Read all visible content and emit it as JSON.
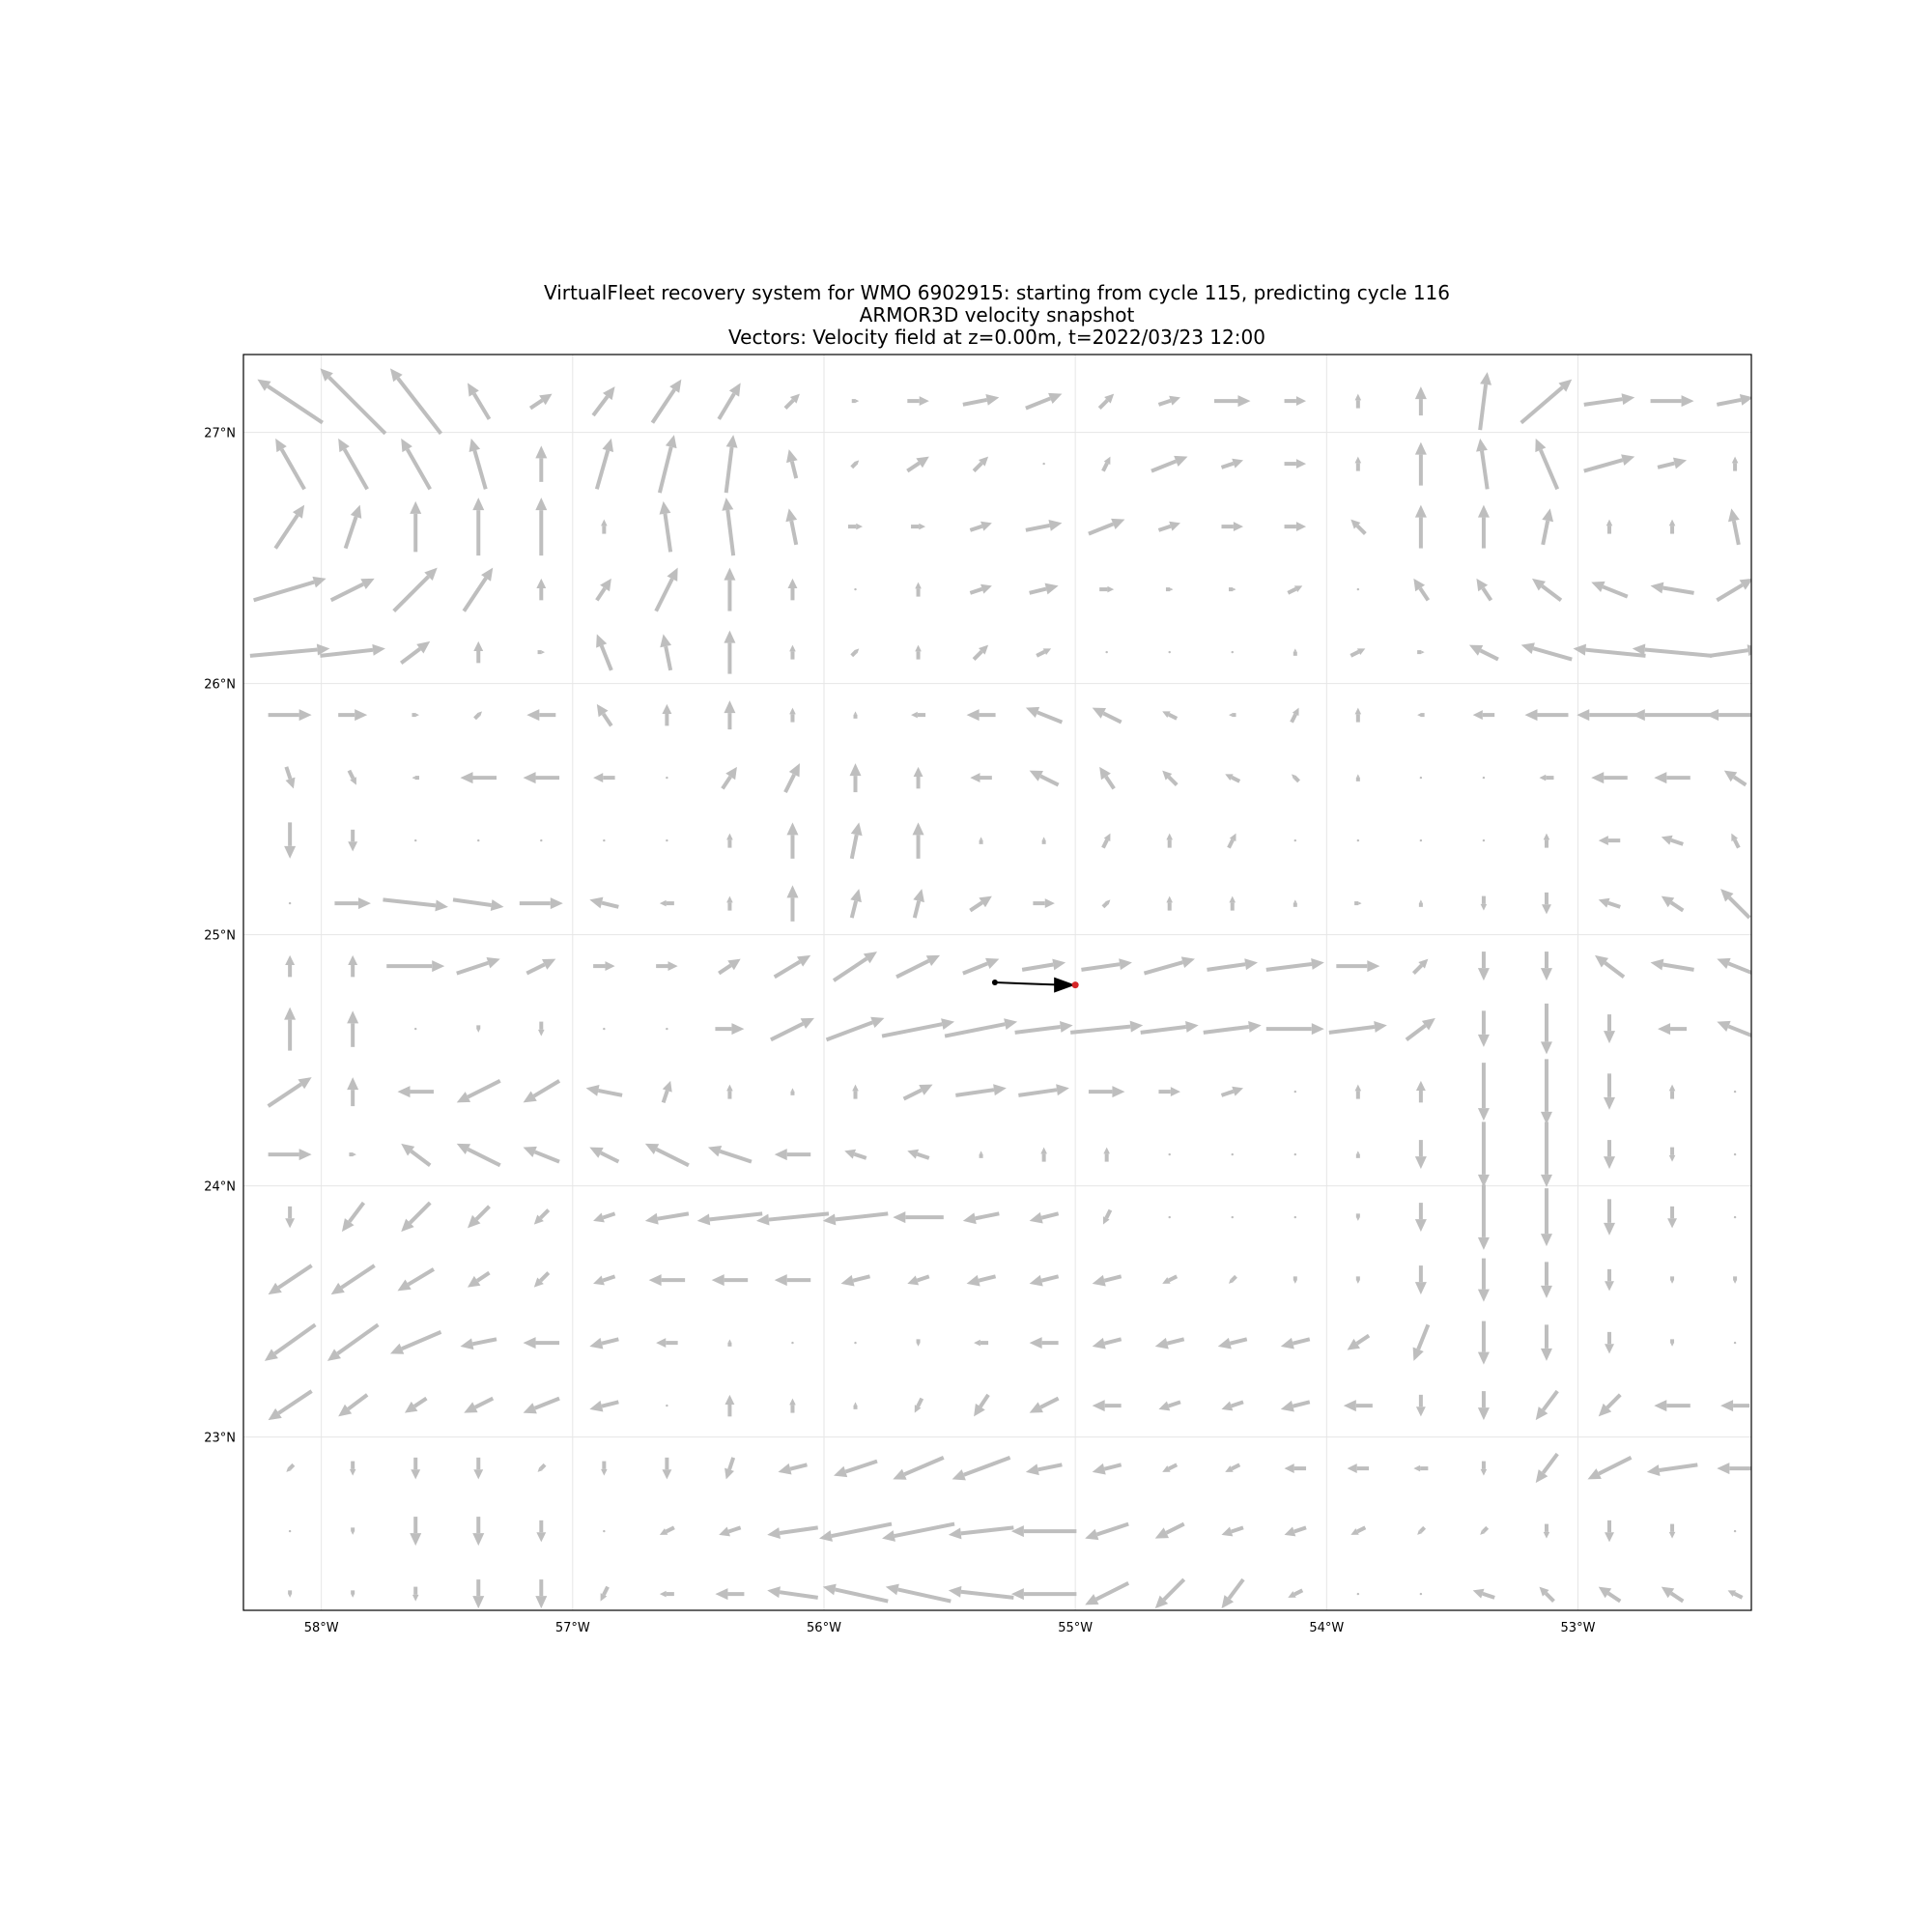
{
  "title_lines": [
    "VirtualFleet recovery system for WMO 6902915: starting from cycle 115, predicting cycle 116",
    "ARMOR3D velocity snapshot",
    "Vectors: Velocity field at z=0.00m, t=2022/03/23 12:00"
  ],
  "colors": {
    "vector": "#bebebe",
    "trajectory": "#000000",
    "start_marker": "#000000",
    "predicted_marker": "#d62728",
    "grid": "#e6e6e6",
    "frame": "#000000"
  },
  "chart_data": {
    "type": "quiver",
    "xlim": [
      -58.31,
      -52.31
    ],
    "ylim": [
      22.31,
      27.31
    ],
    "x_ticks": [
      {
        "value": -58,
        "label": "58°W"
      },
      {
        "value": -57,
        "label": "57°W"
      },
      {
        "value": -56,
        "label": "56°W"
      },
      {
        "value": -55,
        "label": "55°W"
      },
      {
        "value": -54,
        "label": "54°W"
      },
      {
        "value": -53,
        "label": "53°W"
      }
    ],
    "y_ticks": [
      {
        "value": 27,
        "label": "27°N"
      },
      {
        "value": 26,
        "label": "26°N"
      },
      {
        "value": 25,
        "label": "25°N"
      },
      {
        "value": 24,
        "label": "24°N"
      },
      {
        "value": 23,
        "label": "23°N"
      }
    ],
    "grid": true,
    "vector_grid": {
      "lon": [
        -58.125,
        -57.875,
        -57.625,
        -57.375,
        -57.125,
        -56.875,
        -56.625,
        -56.375,
        -56.125,
        -55.875,
        -55.625,
        -55.375,
        -55.125,
        -54.875,
        -54.625,
        -54.375,
        -54.125,
        -53.875,
        -53.625,
        -53.375,
        -53.125,
        -52.875,
        -52.625,
        -52.375
      ],
      "lat": [
        27.125,
        26.875,
        26.625,
        26.375,
        26.125,
        25.875,
        25.625,
        25.375,
        25.125,
        24.875,
        24.625,
        24.375,
        24.125,
        23.875,
        23.625,
        23.375,
        23.125,
        22.875,
        22.625,
        22.375
      ],
      "u": [
        [
          -0.45,
          -0.45,
          -0.35,
          -0.15,
          0.15,
          0.15,
          0.2,
          0.15,
          0.1,
          0.05,
          0.15,
          0.25,
          0.25,
          0.1,
          0.15,
          0.25,
          0.15,
          0.0,
          0.0,
          0.05,
          0.35,
          0.35,
          0.3,
          0.25
        ],
        [
          -0.2,
          -0.2,
          -0.2,
          -0.1,
          0.0,
          0.1,
          0.1,
          0.05,
          -0.05,
          0.05,
          0.15,
          0.1,
          0.0,
          0.05,
          0.25,
          0.15,
          0.15,
          0.0,
          0.0,
          -0.05,
          -0.15,
          0.35,
          0.2,
          0.0
        ],
        [
          0.2,
          0.1,
          0.0,
          0.0,
          0.0,
          0.0,
          -0.05,
          -0.05,
          -0.05,
          0.1,
          0.1,
          0.15,
          0.25,
          0.25,
          0.15,
          0.15,
          0.15,
          -0.1,
          0.0,
          0.0,
          0.05,
          0.0,
          0.0,
          -0.05
        ],
        [
          0.5,
          0.3,
          0.3,
          0.2,
          0.0,
          0.1,
          0.15,
          0.0,
          0.0,
          0.0,
          0.0,
          0.15,
          0.2,
          0.1,
          0.05,
          0.05,
          0.1,
          0.0,
          -0.1,
          -0.1,
          -0.2,
          -0.25,
          -0.3,
          0.25
        ],
        [
          0.55,
          0.45,
          0.2,
          0.0,
          0.05,
          -0.1,
          -0.05,
          0.0,
          0.0,
          0.05,
          0.0,
          0.1,
          0.1,
          0.0,
          0.0,
          0.0,
          0.0,
          0.1,
          0.05,
          -0.2,
          -0.35,
          -0.5,
          -0.55,
          0.35
        ],
        [
          0.3,
          0.2,
          0.05,
          0.05,
          -0.2,
          -0.1,
          0.0,
          0.0,
          0.0,
          0.0,
          -0.1,
          -0.2,
          -0.25,
          -0.2,
          -0.1,
          -0.05,
          0.05,
          0.0,
          -0.05,
          -0.15,
          -0.3,
          -0.45,
          -0.55,
          -0.4
        ],
        [
          0.05,
          0.05,
          -0.05,
          -0.25,
          -0.25,
          -0.15,
          0.0,
          0.1,
          0.1,
          0.0,
          0.0,
          -0.15,
          -0.2,
          -0.1,
          -0.1,
          -0.1,
          -0.05,
          0.0,
          0.0,
          0.0,
          -0.1,
          -0.25,
          -0.25,
          -0.15
        ],
        [
          0.0,
          0.0,
          0.0,
          0.0,
          0.0,
          0.0,
          0.0,
          0.0,
          0.0,
          0.05,
          0.0,
          0.0,
          0.0,
          0.05,
          0.0,
          0.05,
          0.0,
          0.0,
          0.0,
          0.0,
          0.0,
          -0.15,
          -0.15,
          -0.05
        ],
        [
          0.0,
          0.25,
          0.45,
          0.35,
          0.3,
          -0.2,
          -0.1,
          0.0,
          0.0,
          0.05,
          0.05,
          0.15,
          0.15,
          0.05,
          0.0,
          0.0,
          0.0,
          0.05,
          0.0,
          0.0,
          0.0,
          -0.15,
          -0.15,
          -0.2
        ],
        [
          0.0,
          0.0,
          0.4,
          0.3,
          0.2,
          0.15,
          0.15,
          0.15,
          0.25,
          0.3,
          0.3,
          0.25,
          0.3,
          0.35,
          0.35,
          0.35,
          0.4,
          0.3,
          0.1,
          0.0,
          0.0,
          -0.2,
          -0.3,
          -0.25
        ],
        [
          0.0,
          0.0,
          0.0,
          0.0,
          0.0,
          0.0,
          0.0,
          0.2,
          0.3,
          0.4,
          0.5,
          0.5,
          0.4,
          0.5,
          0.4,
          0.4,
          0.4,
          0.4,
          0.2,
          0.0,
          0.0,
          0.0,
          -0.2,
          -0.25
        ],
        [
          0.3,
          0.0,
          -0.25,
          -0.3,
          -0.25,
          -0.25,
          0.05,
          0.0,
          0.0,
          0.0,
          0.2,
          0.35,
          0.35,
          0.25,
          0.15,
          0.15,
          0.0,
          0.0,
          0.0,
          0.0,
          0.0,
          0.0,
          0.0,
          0.0
        ],
        [
          0.3,
          0.05,
          -0.2,
          -0.3,
          -0.25,
          -0.2,
          -0.3,
          -0.3,
          -0.25,
          -0.15,
          -0.15,
          0.0,
          0.0,
          0.0,
          0.0,
          0.0,
          0.0,
          0.0,
          0.0,
          0.0,
          0.0,
          0.0,
          0.0,
          0.0
        ],
        [
          0.0,
          -0.15,
          -0.2,
          -0.15,
          -0.1,
          -0.15,
          -0.3,
          -0.45,
          -0.5,
          -0.45,
          -0.35,
          -0.25,
          -0.2,
          -0.05,
          0.0,
          0.0,
          0.0,
          0.0,
          0.0,
          0.0,
          0.0,
          0.0,
          0.0,
          0.0
        ],
        [
          -0.3,
          -0.3,
          -0.25,
          -0.15,
          -0.1,
          -0.15,
          -0.25,
          -0.25,
          -0.25,
          -0.2,
          -0.15,
          -0.2,
          -0.2,
          -0.2,
          -0.1,
          -0.05,
          0.0,
          0.0,
          0.0,
          0.0,
          0.0,
          0.0,
          0.0,
          0.0
        ],
        [
          -0.35,
          -0.35,
          -0.35,
          -0.25,
          -0.25,
          -0.2,
          -0.15,
          0.0,
          0.0,
          0.0,
          0.0,
          -0.1,
          -0.2,
          -0.2,
          -0.2,
          -0.2,
          -0.2,
          -0.15,
          -0.1,
          0.0,
          0.0,
          0.0,
          0.0,
          0.0
        ],
        [
          -0.3,
          -0.2,
          -0.15,
          -0.2,
          -0.25,
          -0.2,
          0.0,
          0.0,
          0.0,
          0.0,
          -0.05,
          -0.1,
          -0.2,
          -0.2,
          -0.15,
          -0.15,
          -0.2,
          -0.2,
          0.0,
          0.0,
          -0.15,
          -0.15,
          -0.25,
          -0.2
        ],
        [
          -0.05,
          0.0,
          0.0,
          0.0,
          -0.05,
          0.0,
          0.0,
          -0.05,
          -0.2,
          -0.3,
          -0.35,
          -0.4,
          -0.25,
          -0.2,
          -0.1,
          -0.1,
          -0.15,
          -0.15,
          -0.1,
          0.0,
          -0.15,
          -0.3,
          -0.35,
          -0.25
        ],
        [
          0.0,
          0.0,
          0.0,
          0.0,
          0.0,
          0.0,
          -0.1,
          -0.15,
          -0.35,
          -0.5,
          -0.5,
          -0.45,
          -0.45,
          -0.3,
          -0.2,
          -0.15,
          -0.15,
          -0.1,
          -0.05,
          -0.05,
          0.0,
          0.0,
          0.0,
          0.0
        ],
        [
          0.0,
          0.0,
          0.0,
          0.0,
          0.0,
          -0.05,
          -0.1,
          -0.2,
          -0.35,
          -0.45,
          -0.45,
          -0.45,
          -0.45,
          -0.3,
          -0.2,
          -0.15,
          -0.1,
          0.0,
          0.0,
          -0.15,
          -0.1,
          -0.15,
          -0.15,
          -0.1
        ]
      ],
      "v": [
        [
          0.3,
          0.45,
          0.45,
          0.25,
          0.1,
          0.2,
          0.3,
          0.25,
          0.1,
          0.0,
          0.0,
          0.05,
          0.1,
          0.1,
          0.05,
          0.0,
          0.0,
          0.1,
          0.2,
          0.4,
          0.3,
          0.05,
          0.0,
          0.05
        ],
        [
          0.35,
          0.35,
          0.35,
          0.35,
          0.25,
          0.35,
          0.4,
          0.4,
          0.2,
          0.05,
          0.1,
          0.1,
          0.0,
          0.1,
          0.1,
          0.05,
          0.0,
          0.1,
          0.3,
          0.35,
          0.35,
          0.1,
          0.05,
          0.1
        ],
        [
          0.3,
          0.3,
          0.35,
          0.4,
          0.4,
          0.1,
          0.35,
          0.4,
          0.25,
          0.0,
          0.0,
          0.05,
          0.05,
          0.1,
          0.05,
          0.0,
          0.0,
          0.1,
          0.3,
          0.3,
          0.25,
          0.1,
          0.1,
          0.25
        ],
        [
          0.15,
          0.15,
          0.3,
          0.3,
          0.15,
          0.15,
          0.3,
          0.3,
          0.15,
          0.0,
          0.1,
          0.05,
          0.05,
          0.0,
          0.0,
          0.0,
          0.05,
          0.0,
          0.15,
          0.15,
          0.15,
          0.1,
          0.05,
          0.15
        ],
        [
          0.05,
          0.05,
          0.15,
          0.15,
          0.0,
          0.25,
          0.25,
          0.3,
          0.1,
          0.05,
          0.1,
          0.1,
          0.05,
          0.0,
          0.0,
          0.0,
          0.05,
          0.05,
          0.0,
          0.1,
          0.1,
          0.05,
          0.05,
          0.05
        ],
        [
          0.0,
          0.0,
          0.0,
          0.05,
          0.0,
          0.15,
          0.15,
          0.2,
          0.1,
          0.05,
          0.0,
          0.0,
          0.1,
          0.1,
          0.05,
          0.0,
          0.1,
          0.1,
          0.0,
          0.0,
          0.0,
          0.0,
          0.0,
          0.0
        ],
        [
          -0.15,
          -0.1,
          0.0,
          0.0,
          0.0,
          0.0,
          0.0,
          0.15,
          0.2,
          0.2,
          0.15,
          0.0,
          0.1,
          0.15,
          0.1,
          0.05,
          0.05,
          0.05,
          0.0,
          0.0,
          0.0,
          0.0,
          0.0,
          0.1
        ],
        [
          -0.25,
          -0.15,
          0.0,
          0.0,
          0.0,
          0.0,
          0.0,
          0.1,
          0.25,
          0.25,
          0.25,
          0.05,
          0.05,
          0.1,
          0.1,
          0.1,
          0.0,
          0.0,
          0.0,
          0.0,
          0.1,
          0.0,
          0.05,
          0.1
        ],
        [
          0.0,
          0.0,
          -0.05,
          -0.05,
          0.0,
          0.05,
          0.0,
          0.1,
          0.25,
          0.2,
          0.2,
          0.1,
          0.0,
          0.05,
          0.1,
          0.1,
          0.05,
          0.0,
          0.05,
          -0.1,
          -0.15,
          0.05,
          0.1,
          0.2
        ],
        [
          0.15,
          0.15,
          0.0,
          0.1,
          0.1,
          0.0,
          0.0,
          0.1,
          0.15,
          0.2,
          0.15,
          0.1,
          0.05,
          0.05,
          0.1,
          0.05,
          0.05,
          0.0,
          0.1,
          -0.2,
          -0.2,
          0.15,
          0.05,
          0.1
        ],
        [
          0.3,
          0.25,
          0.0,
          -0.05,
          -0.1,
          0.0,
          0.0,
          0.0,
          0.15,
          0.15,
          0.1,
          0.1,
          0.05,
          0.05,
          0.05,
          0.05,
          0.0,
          0.05,
          0.15,
          -0.25,
          -0.35,
          -0.2,
          0.0,
          0.1
        ],
        [
          0.2,
          0.2,
          0.0,
          -0.15,
          -0.15,
          0.05,
          0.15,
          0.1,
          0.05,
          0.1,
          0.1,
          0.05,
          0.05,
          0.0,
          0.0,
          0.05,
          0.0,
          0.1,
          0.15,
          -0.4,
          -0.45,
          -0.25,
          0.1,
          0.0
        ],
        [
          0.0,
          0.0,
          0.15,
          0.15,
          0.1,
          0.1,
          0.15,
          0.1,
          0.0,
          0.05,
          0.05,
          0.05,
          0.1,
          0.1,
          0.0,
          0.0,
          0.0,
          0.05,
          -0.2,
          -0.45,
          -0.45,
          -0.2,
          -0.1,
          0.0
        ],
        [
          -0.15,
          -0.2,
          -0.2,
          -0.15,
          -0.1,
          -0.05,
          -0.05,
          -0.05,
          -0.05,
          -0.05,
          0.0,
          -0.05,
          -0.05,
          -0.1,
          0.0,
          0.0,
          0.0,
          -0.05,
          -0.2,
          -0.45,
          -0.4,
          -0.25,
          -0.15,
          0.0
        ],
        [
          -0.2,
          -0.2,
          -0.15,
          -0.1,
          -0.1,
          -0.05,
          0.0,
          0.0,
          0.0,
          -0.05,
          -0.05,
          -0.05,
          -0.05,
          -0.05,
          -0.05,
          -0.05,
          -0.05,
          -0.05,
          -0.2,
          -0.3,
          -0.25,
          -0.15,
          -0.05,
          -0.05
        ],
        [
          -0.25,
          -0.25,
          -0.15,
          -0.05,
          0.0,
          -0.05,
          0.0,
          0.05,
          0.0,
          0.0,
          -0.05,
          0.0,
          0.0,
          -0.05,
          -0.05,
          -0.05,
          -0.05,
          -0.1,
          -0.25,
          -0.3,
          -0.25,
          -0.15,
          -0.05,
          0.0
        ],
        [
          -0.2,
          -0.15,
          -0.1,
          -0.1,
          -0.1,
          -0.05,
          0.0,
          0.15,
          0.1,
          0.05,
          -0.1,
          -0.15,
          -0.1,
          0.0,
          -0.05,
          -0.05,
          -0.05,
          0.0,
          -0.15,
          -0.2,
          -0.2,
          -0.15,
          0.0,
          0.0
        ],
        [
          -0.05,
          -0.1,
          -0.15,
          -0.15,
          -0.05,
          -0.1,
          -0.15,
          -0.15,
          -0.05,
          -0.1,
          -0.15,
          -0.15,
          -0.05,
          -0.05,
          -0.05,
          -0.05,
          0.0,
          0.0,
          0.0,
          -0.1,
          -0.2,
          -0.15,
          -0.05,
          0.0
        ],
        [
          0.0,
          -0.05,
          -0.2,
          -0.2,
          -0.15,
          0.0,
          -0.05,
          -0.05,
          -0.05,
          -0.1,
          -0.1,
          -0.05,
          0.0,
          -0.1,
          -0.1,
          -0.05,
          -0.05,
          -0.05,
          -0.05,
          -0.05,
          -0.1,
          -0.15,
          -0.1,
          0.0
        ],
        [
          -0.05,
          -0.05,
          -0.1,
          -0.2,
          -0.2,
          -0.1,
          0.0,
          0.0,
          0.05,
          0.1,
          0.1,
          0.05,
          0.0,
          -0.15,
          -0.2,
          -0.2,
          -0.05,
          0.0,
          0.0,
          0.05,
          0.1,
          0.1,
          0.1,
          0.05
        ]
      ]
    },
    "trajectory": {
      "lon": [
        -55.32,
        -55.2,
        -55.05,
        -55.0
      ],
      "lat": [
        24.81,
        24.805,
        24.8,
        24.8
      ]
    },
    "start_position": {
      "lon": -55.32,
      "lat": 24.81
    },
    "predicted_position": {
      "lon": -55.0,
      "lat": 24.8
    }
  }
}
